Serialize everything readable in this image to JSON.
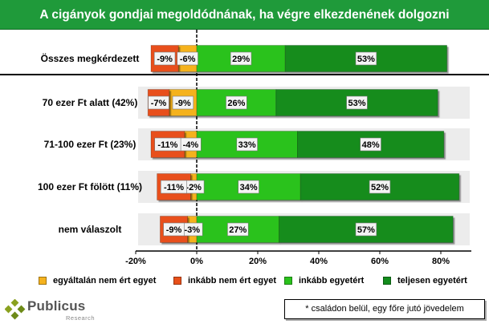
{
  "title": "A cigányok gondjai megoldódnának, ha végre elkezdenének dolgozni",
  "colors": {
    "title_bg": "#1f9a3a",
    "egyaltalan": "#f5b21e",
    "inkabb_nem": "#e8501a",
    "inkabb_egyet": "#2ac21c",
    "teljesen": "#138c1c"
  },
  "chart_data": {
    "type": "bar",
    "orientation": "horizontal",
    "stacked": "diverging",
    "categories": [
      "Összes megkérdezett",
      "70 ezer Ft alatt (42%)",
      "71-100 ezer Ft (23%)",
      "100 ezer Ft fölött (11%)",
      "nem válaszolt"
    ],
    "series": [
      {
        "name": "egyáltalán nem ért egyet",
        "values": [
          -6,
          -9,
          -4,
          -2,
          -3
        ],
        "labels": [
          "-6%",
          "-9%",
          "-4%",
          "-2%",
          "-3%"
        ]
      },
      {
        "name": "inkább nem ért egyet",
        "values": [
          -9,
          -7,
          -11,
          -11,
          -9
        ],
        "labels": [
          "-9%",
          "-7%",
          "-11%",
          "-11%",
          "-9%"
        ]
      },
      {
        "name": "inkább egyetért",
        "values": [
          29,
          26,
          33,
          34,
          27
        ],
        "labels": [
          "29%",
          "26%",
          "33%",
          "34%",
          "27%"
        ]
      },
      {
        "name": "teljesen egyetért",
        "values": [
          53,
          53,
          48,
          52,
          57
        ],
        "labels": [
          "53%",
          "53%",
          "48%",
          "52%",
          "57%"
        ]
      }
    ],
    "xlim": [
      -20,
      90
    ],
    "x_ticks": [
      -20,
      0,
      20,
      40,
      60,
      80
    ],
    "x_tick_labels": [
      "-20%",
      "0%",
      "20%",
      "40%",
      "60%",
      "80%"
    ],
    "legend_position": "bottom"
  },
  "logo": {
    "name": "Publicus",
    "sub": "Research"
  },
  "footnote": "* családon belül, egy főre jutó jövedelem"
}
